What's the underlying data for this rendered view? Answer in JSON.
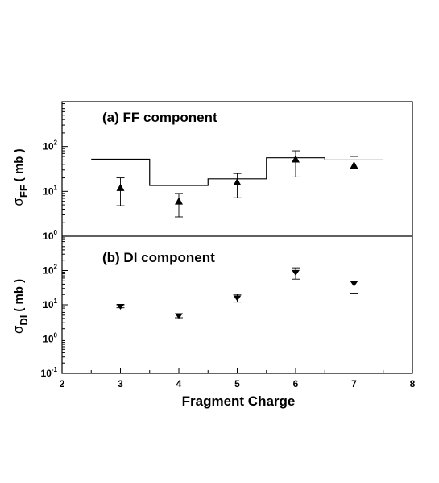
{
  "chart_data": {
    "type": "scatter",
    "xlabel": "Fragment Charge",
    "x_ticks": [
      2,
      3,
      4,
      5,
      6,
      7,
      8
    ],
    "xlim": [
      2,
      8
    ],
    "grid": false,
    "panels": [
      {
        "id": "a",
        "title": "(a)  FF component",
        "ylabel_symbol": "σ",
        "ylabel_subscript": "FF",
        "ylabel_unit": "( mb )",
        "yscale": "log",
        "ylim": [
          1,
          1000
        ],
        "y_tick_labels": [
          {
            "value": 1,
            "base": "10",
            "exp": "0"
          },
          {
            "value": 10,
            "base": "10",
            "exp": "1"
          },
          {
            "value": 100,
            "base": "10",
            "exp": "2"
          }
        ],
        "marker": "triangle-up",
        "points": [
          {
            "x": 3,
            "y": 12,
            "err_low": 4.8,
            "err_high": 20
          },
          {
            "x": 4,
            "y": 6,
            "err_low": 2.7,
            "err_high": 9
          },
          {
            "x": 5,
            "y": 16,
            "err_low": 7.2,
            "err_high": 25
          },
          {
            "x": 6,
            "y": 52,
            "err_low": 21,
            "err_high": 80
          },
          {
            "x": 7,
            "y": 38,
            "err_low": 17,
            "err_high": 60
          }
        ],
        "histogram": [
          {
            "x0": 2.5,
            "x1": 3.5,
            "y": 52
          },
          {
            "x0": 3.5,
            "x1": 4.5,
            "y": 13.5
          },
          {
            "x0": 4.5,
            "x1": 5.5,
            "y": 19
          },
          {
            "x0": 5.5,
            "x1": 6.5,
            "y": 56
          },
          {
            "x0": 6.5,
            "x1": 7.5,
            "y": 50
          }
        ]
      },
      {
        "id": "b",
        "title": "(b)  DI component",
        "ylabel_symbol": "σ",
        "ylabel_subscript": "DI",
        "ylabel_unit": "( mb )",
        "yscale": "log",
        "ylim": [
          0.1,
          1000
        ],
        "y_tick_labels": [
          {
            "value": 0.1,
            "base": "10",
            "exp": "-1"
          },
          {
            "value": 1,
            "base": "10",
            "exp": "0"
          },
          {
            "value": 10,
            "base": "10",
            "exp": "1"
          },
          {
            "value": 100,
            "base": "10",
            "exp": "2"
          }
        ],
        "marker": "triangle-down",
        "points": [
          {
            "x": 3,
            "y": 9,
            "err_low": 8.2,
            "err_high": 10
          },
          {
            "x": 4,
            "y": 4.8,
            "err_low": 4.2,
            "err_high": 5.4
          },
          {
            "x": 5,
            "y": 16,
            "err_low": 12,
            "err_high": 20
          },
          {
            "x": 6,
            "y": 88,
            "err_low": 56,
            "err_high": 120
          },
          {
            "x": 7,
            "y": 42,
            "err_low": 22,
            "err_high": 65
          }
        ]
      }
    ]
  }
}
